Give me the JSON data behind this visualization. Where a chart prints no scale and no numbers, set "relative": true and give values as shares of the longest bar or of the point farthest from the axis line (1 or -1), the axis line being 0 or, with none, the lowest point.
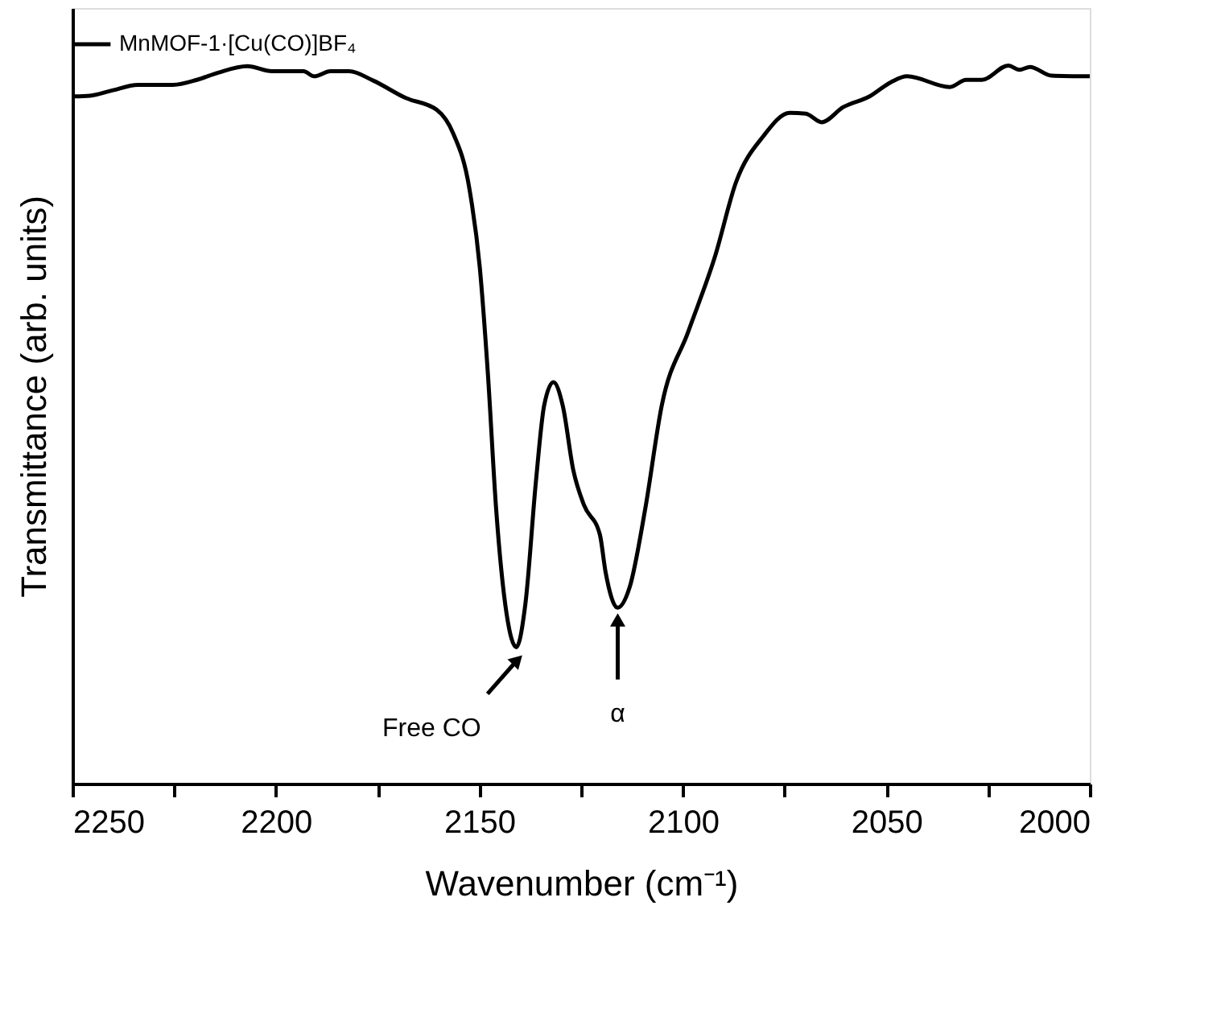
{
  "chart_data": {
    "type": "line",
    "relative": true,
    "xlabel": "Wavenumber (cm⁻¹)",
    "ylabel": "Transmittance (arb. units)",
    "xlim": [
      2250,
      2000
    ],
    "xticks": [
      2250,
      {
        "value": 2225,
        "label": null
      },
      2200,
      {
        "value": 2175,
        "label": null
      },
      2150,
      {
        "value": 2125,
        "label": null
      },
      2100,
      {
        "value": 2075,
        "label": null
      },
      2050,
      {
        "value": 2025,
        "label": null
      },
      2000
    ],
    "tick_labels": "x",
    "grid": false,
    "legend": "top",
    "marker": "none",
    "line_style": "solid",
    "series": [
      {
        "name": "MnMOF-1·[Cu(CO)]BF₄",
        "color": "#000000",
        "x": [
          2249.6,
          2245.7,
          2240.4,
          2233.9,
          2225.3,
          2219.4,
          2214.2,
          2207.0,
          2201.0,
          2193.2,
          2190.6,
          2186.6,
          2182.0,
          2176.1,
          2168.2,
          2160.4,
          2156.4,
          2152.5,
          2149.9,
          2147.9,
          2145.9,
          2143.3,
          2140.9,
          2138.7,
          2136.1,
          2134.1,
          2131.8,
          2129.5,
          2126.9,
          2124.3,
          2120.4,
          2119.0,
          2116.0,
          2113.1,
          2109.2,
          2105.2,
          2098.7,
          2092.1,
          2086.9,
          2080.3,
          2073.7,
          2069.8,
          2065.9,
          2060.6,
          2054.1,
          2048.8,
          2044.9,
          2034.4,
          2030.4,
          2026.5,
          2020.0,
          2017.3,
          2014.7,
          2009.4,
          2000.0
        ],
        "values": [
          0.957,
          0.958,
          0.965,
          0.973,
          0.973,
          0.98,
          0.99,
          0.999,
          0.992,
          0.992,
          0.985,
          0.992,
          0.992,
          0.979,
          0.955,
          0.938,
          0.905,
          0.83,
          0.719,
          0.57,
          0.384,
          0.236,
          0.19,
          0.25,
          0.421,
          0.526,
          0.559,
          0.526,
          0.436,
          0.388,
          0.347,
          0.295,
          0.245,
          0.273,
          0.384,
          0.526,
          0.629,
          0.734,
          0.838,
          0.901,
          0.934,
          0.933,
          0.921,
          0.942,
          0.957,
          0.977,
          0.985,
          0.97,
          0.98,
          0.98,
          1.0,
          0.994,
          0.998,
          0.986,
          0.985
        ]
      }
    ],
    "annotations": [
      {
        "text": "Free CO",
        "x": 2141,
        "y": 0.19
      },
      {
        "text": "α",
        "x": 2116,
        "y": 0.245
      }
    ]
  }
}
